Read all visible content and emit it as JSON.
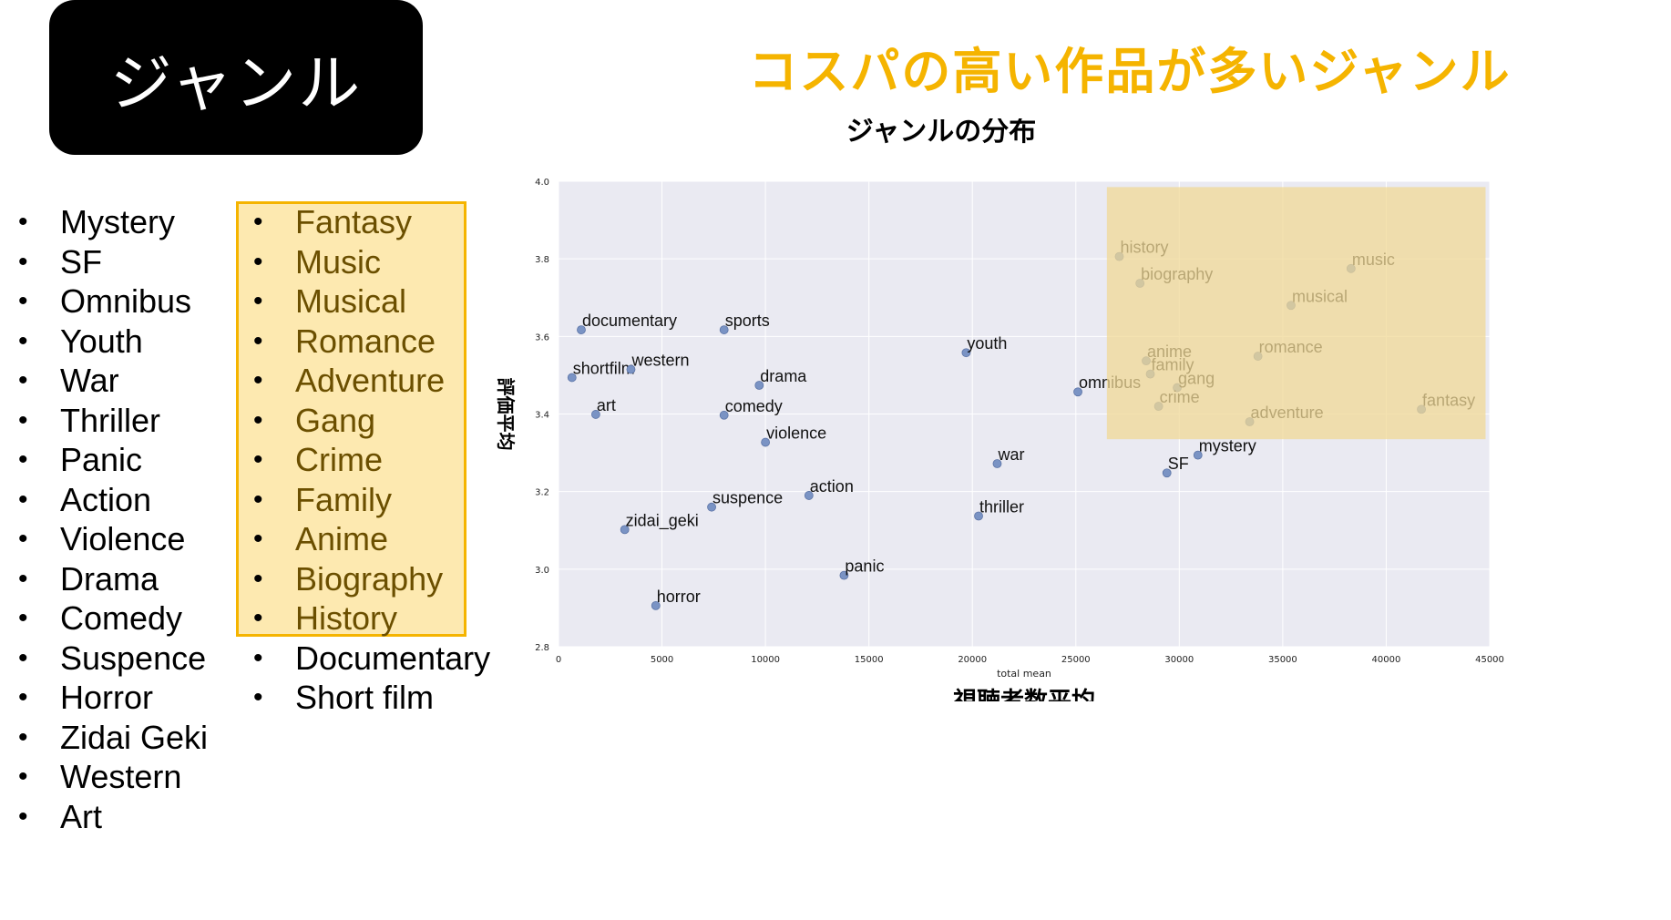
{
  "header": {
    "label": "ジャンル"
  },
  "slide_title": "コスパの高い作品が多いジャンル",
  "genres_left": [
    "Mystery",
    "SF",
    "Omnibus",
    "Youth",
    "War",
    "Thriller",
    "Panic",
    "Action",
    "Violence",
    "Drama",
    "Comedy",
    "Suspence",
    "Horror",
    "Zidai Geki",
    "Western",
    "Art"
  ],
  "genres_right": [
    "Fantasy",
    "Music",
    "Musical",
    "Romance",
    "Adventure",
    "Gang",
    "Crime",
    "Family",
    "Anime",
    "Biography",
    "History",
    "Documentary",
    "Short film"
  ],
  "highlighted_count": 11,
  "bullet": "•",
  "colors": {
    "accent": "#f5b400",
    "highlight_fill": "#fde9b0",
    "plot_bg": "#eaeaf2",
    "point": "#7a93c4",
    "region": "#f0d896"
  },
  "chart_data": {
    "type": "scatter",
    "title": "ジャンルの分布",
    "xlabel": "total mean",
    "xlabel_ja": "視聴者数平均",
    "ylabel": "評価平均",
    "xlim": [
      0,
      45000
    ],
    "ylim": [
      2.8,
      4.0
    ],
    "xticks": [
      0,
      5000,
      10000,
      15000,
      20000,
      25000,
      30000,
      35000,
      40000,
      45000
    ],
    "yticks": [
      2.8,
      3.0,
      3.2,
      3.4,
      3.6,
      3.8,
      4.0
    ],
    "grid": true,
    "highlight_region": {
      "x": [
        26500,
        44800
      ],
      "y": [
        3.335,
        3.985
      ]
    },
    "points": [
      {
        "label": "documentary",
        "x": 1100,
        "y": 3.617
      },
      {
        "label": "sports",
        "x": 8000,
        "y": 3.617
      },
      {
        "label": "shortfilm",
        "x": 650,
        "y": 3.494
      },
      {
        "label": "western",
        "x": 3500,
        "y": 3.515
      },
      {
        "label": "art",
        "x": 1800,
        "y": 3.399
      },
      {
        "label": "drama",
        "x": 9700,
        "y": 3.474
      },
      {
        "label": "comedy",
        "x": 8000,
        "y": 3.397
      },
      {
        "label": "violence",
        "x": 10000,
        "y": 3.327
      },
      {
        "label": "youth",
        "x": 19700,
        "y": 3.558
      },
      {
        "label": "omnibus",
        "x": 25100,
        "y": 3.457
      },
      {
        "label": "war",
        "x": 21200,
        "y": 3.272
      },
      {
        "label": "thriller",
        "x": 20300,
        "y": 3.137
      },
      {
        "label": "action",
        "x": 12100,
        "y": 3.19
      },
      {
        "label": "suspence",
        "x": 7400,
        "y": 3.16
      },
      {
        "label": "zidai_geki",
        "x": 3200,
        "y": 3.102
      },
      {
        "label": "panic",
        "x": 13800,
        "y": 2.984
      },
      {
        "label": "horror",
        "x": 4700,
        "y": 2.906
      },
      {
        "label": "history",
        "x": 27100,
        "y": 3.806
      },
      {
        "label": "biography",
        "x": 28100,
        "y": 3.737
      },
      {
        "label": "music",
        "x": 38300,
        "y": 3.775
      },
      {
        "label": "musical",
        "x": 35400,
        "y": 3.68
      },
      {
        "label": "anime",
        "x": 28400,
        "y": 3.537
      },
      {
        "label": "family",
        "x": 28600,
        "y": 3.503
      },
      {
        "label": "gang",
        "x": 29900,
        "y": 3.468
      },
      {
        "label": "crime",
        "x": 29000,
        "y": 3.42
      },
      {
        "label": "romance",
        "x": 33800,
        "y": 3.549
      },
      {
        "label": "adventure",
        "x": 33400,
        "y": 3.38
      },
      {
        "label": "fantasy",
        "x": 41700,
        "y": 3.412
      },
      {
        "label": "mystery",
        "x": 30900,
        "y": 3.294
      },
      {
        "label": "SF",
        "x": 29400,
        "y": 3.248
      }
    ]
  }
}
